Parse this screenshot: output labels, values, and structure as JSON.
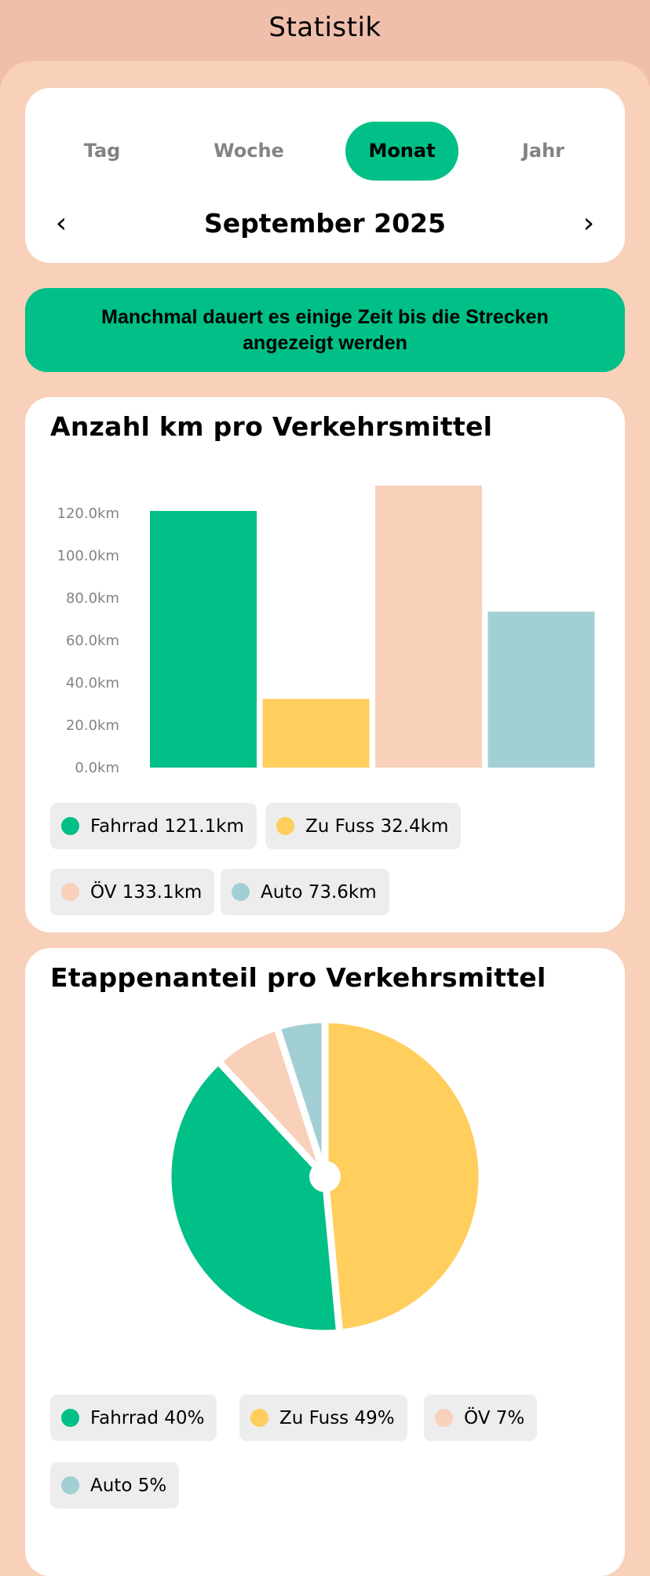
{
  "header": {
    "title": "Statistik"
  },
  "period": {
    "tabs": [
      {
        "label": "Tag"
      },
      {
        "label": "Woche"
      },
      {
        "label": "Monat",
        "active": true
      },
      {
        "label": "Jahr"
      }
    ],
    "current": "September 2025",
    "prev_icon": "chevron-left-icon",
    "next_icon": "chevron-right-icon"
  },
  "banner": {
    "text": "Manchmal dauert es einige Zeit bis die Strecken angezeigt werden"
  },
  "colors": {
    "Fahrrad": "#00BF87",
    "Zu Fuss": "#FFCE5C",
    "ÖV": "#F9D0BA",
    "Auto": "#A2CFD3",
    "accent": "#00BF87",
    "header": "#F0BFAC",
    "background": "#F9D0BA"
  },
  "bar_card": {
    "title": "Anzahl km pro Verkehrsmittel",
    "legend": [
      "Fahrrad 121.1km",
      "Zu Fuss 32.4km",
      "ÖV 133.1km",
      "Auto 73.6km"
    ]
  },
  "pie_card": {
    "title": "Etappenanteil pro Verkehrsmittel",
    "legend": [
      "Fahrrad 40%",
      "Zu Fuss 49%",
      "ÖV 7%",
      "Auto 5%"
    ]
  },
  "chart_data": [
    {
      "type": "bar",
      "title": "Anzahl km pro Verkehrsmittel",
      "categories": [
        "Fahrrad",
        "Zu Fuss",
        "ÖV",
        "Auto"
      ],
      "values": [
        121.1,
        32.4,
        133.1,
        73.6
      ],
      "yticks": [
        "0.0km",
        "20.0km",
        "40.0km",
        "60.0km",
        "80.0km",
        "100.0km",
        "120.0km"
      ],
      "ylim": [
        0,
        133.1
      ],
      "grid": false,
      "legend": "bottom"
    },
    {
      "type": "pie",
      "title": "Etappenanteil pro Verkehrsmittel",
      "categories": [
        "Zu Fuss",
        "Fahrrad",
        "ÖV",
        "Auto"
      ],
      "values": [
        49,
        40,
        7,
        5
      ],
      "legend": "bottom"
    }
  ]
}
